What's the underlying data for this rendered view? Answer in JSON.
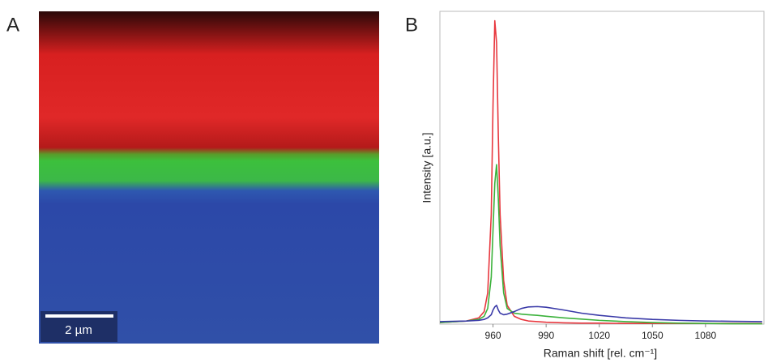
{
  "panel_a": {
    "label": "A",
    "scale_bar": "2 µm"
  },
  "chart_data": {
    "type": "line",
    "panel_label": "B",
    "xlabel": "Raman shift [rel. cm⁻¹]",
    "ylabel": "Intensity [a.u.]",
    "x": [
      930,
      945,
      952,
      955,
      957,
      959,
      960,
      961,
      962,
      963,
      964,
      966,
      968,
      972,
      976,
      980,
      985,
      990,
      1000,
      1010,
      1020,
      1035,
      1050,
      1065,
      1080,
      1095,
      1112
    ],
    "series": [
      {
        "color": "#e8383f",
        "values": [
          0.5,
          1,
          2,
          4,
          10,
          35,
          70,
          97,
          90,
          60,
          35,
          14,
          6,
          2.5,
          1.5,
          1,
          0.8,
          0.6,
          0.4,
          0.3,
          0.3,
          0.2,
          0.2,
          0.2,
          0.2,
          0.2,
          0.2
        ]
      },
      {
        "color": "#3cb23c",
        "values": [
          0.5,
          1,
          1.5,
          2.5,
          5,
          15,
          30,
          45,
          51,
          40,
          25,
          10,
          5,
          3.5,
          3.2,
          3,
          2.8,
          2.5,
          2,
          1.6,
          1.2,
          0.8,
          0.5,
          0.3,
          0.2,
          0.1,
          0.1
        ]
      },
      {
        "color": "#3a3aa8",
        "values": [
          0.8,
          1,
          1.2,
          1.5,
          2,
          3,
          4.5,
          5.5,
          6,
          4.5,
          3.5,
          3,
          3.2,
          4,
          5,
          5.5,
          5.6,
          5.4,
          4.5,
          3.5,
          2.8,
          2,
          1.5,
          1.2,
          1,
          0.9,
          0.8
        ]
      }
    ],
    "xlim": [
      930,
      1113
    ],
    "xticks": [
      960,
      990,
      1020,
      1050,
      1080
    ],
    "ylim": [
      0,
      100
    ],
    "grid": false
  }
}
